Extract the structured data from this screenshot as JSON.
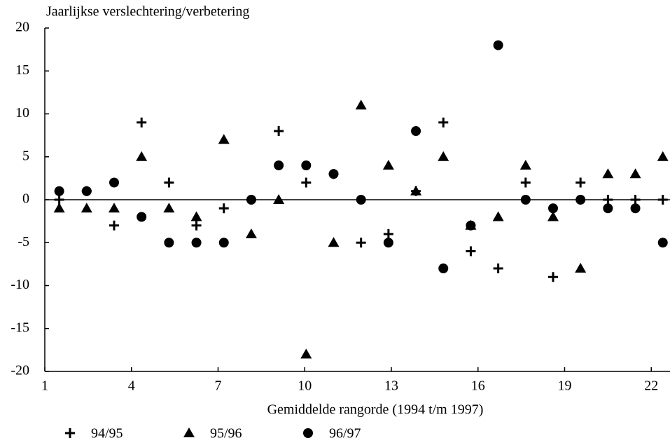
{
  "chart_data": {
    "type": "scatter",
    "ylabel": "Jaarlijkse verslechtering/verbetering",
    "xlabel": "Gemiddelde rangorde (1994 t/m 1997)",
    "x": [
      1.5,
      2.45,
      3.4,
      4.35,
      5.3,
      6.25,
      7.2,
      8.15,
      9.1,
      10.05,
      11,
      11.95,
      12.9,
      13.85,
      14.8,
      15.75,
      16.7,
      17.65,
      18.6,
      19.55,
      20.5,
      21.45,
      22.4
    ],
    "series": [
      {
        "name": "94/95",
        "marker": "plus",
        "color": "#000000",
        "values": [
          0,
          1,
          -3,
          9,
          2,
          -3,
          -1,
          0,
          8,
          2,
          3,
          -5,
          -4,
          1,
          9,
          -6,
          -8,
          2,
          -9,
          2,
          0,
          0,
          0
        ]
      },
      {
        "name": "95/96",
        "marker": "triangle",
        "color": "#000000",
        "values": [
          -1,
          -1,
          -1,
          5,
          -1,
          -2,
          7,
          -4,
          0,
          -18,
          -5,
          11,
          4,
          1,
          5,
          -3,
          -2,
          4,
          -2,
          -8,
          3,
          3,
          5
        ]
      },
      {
        "name": "96/97",
        "marker": "circle",
        "color": "#000000",
        "values": [
          1,
          1,
          2,
          -2,
          -5,
          -5,
          -5,
          0,
          4,
          4,
          3,
          0,
          -5,
          8,
          -8,
          -3,
          18,
          0,
          -1,
          0,
          -1,
          -1,
          -5
        ]
      }
    ],
    "xlim": [
      1,
      22.6
    ],
    "xticks": [
      1,
      4,
      7,
      10,
      13,
      16,
      19,
      22
    ],
    "ylim": [
      -20,
      20
    ],
    "yticks": [
      20,
      15,
      10,
      5,
      0,
      -5,
      -10,
      -15,
      -20
    ],
    "zero_line": true,
    "legend": "bottom-left"
  }
}
